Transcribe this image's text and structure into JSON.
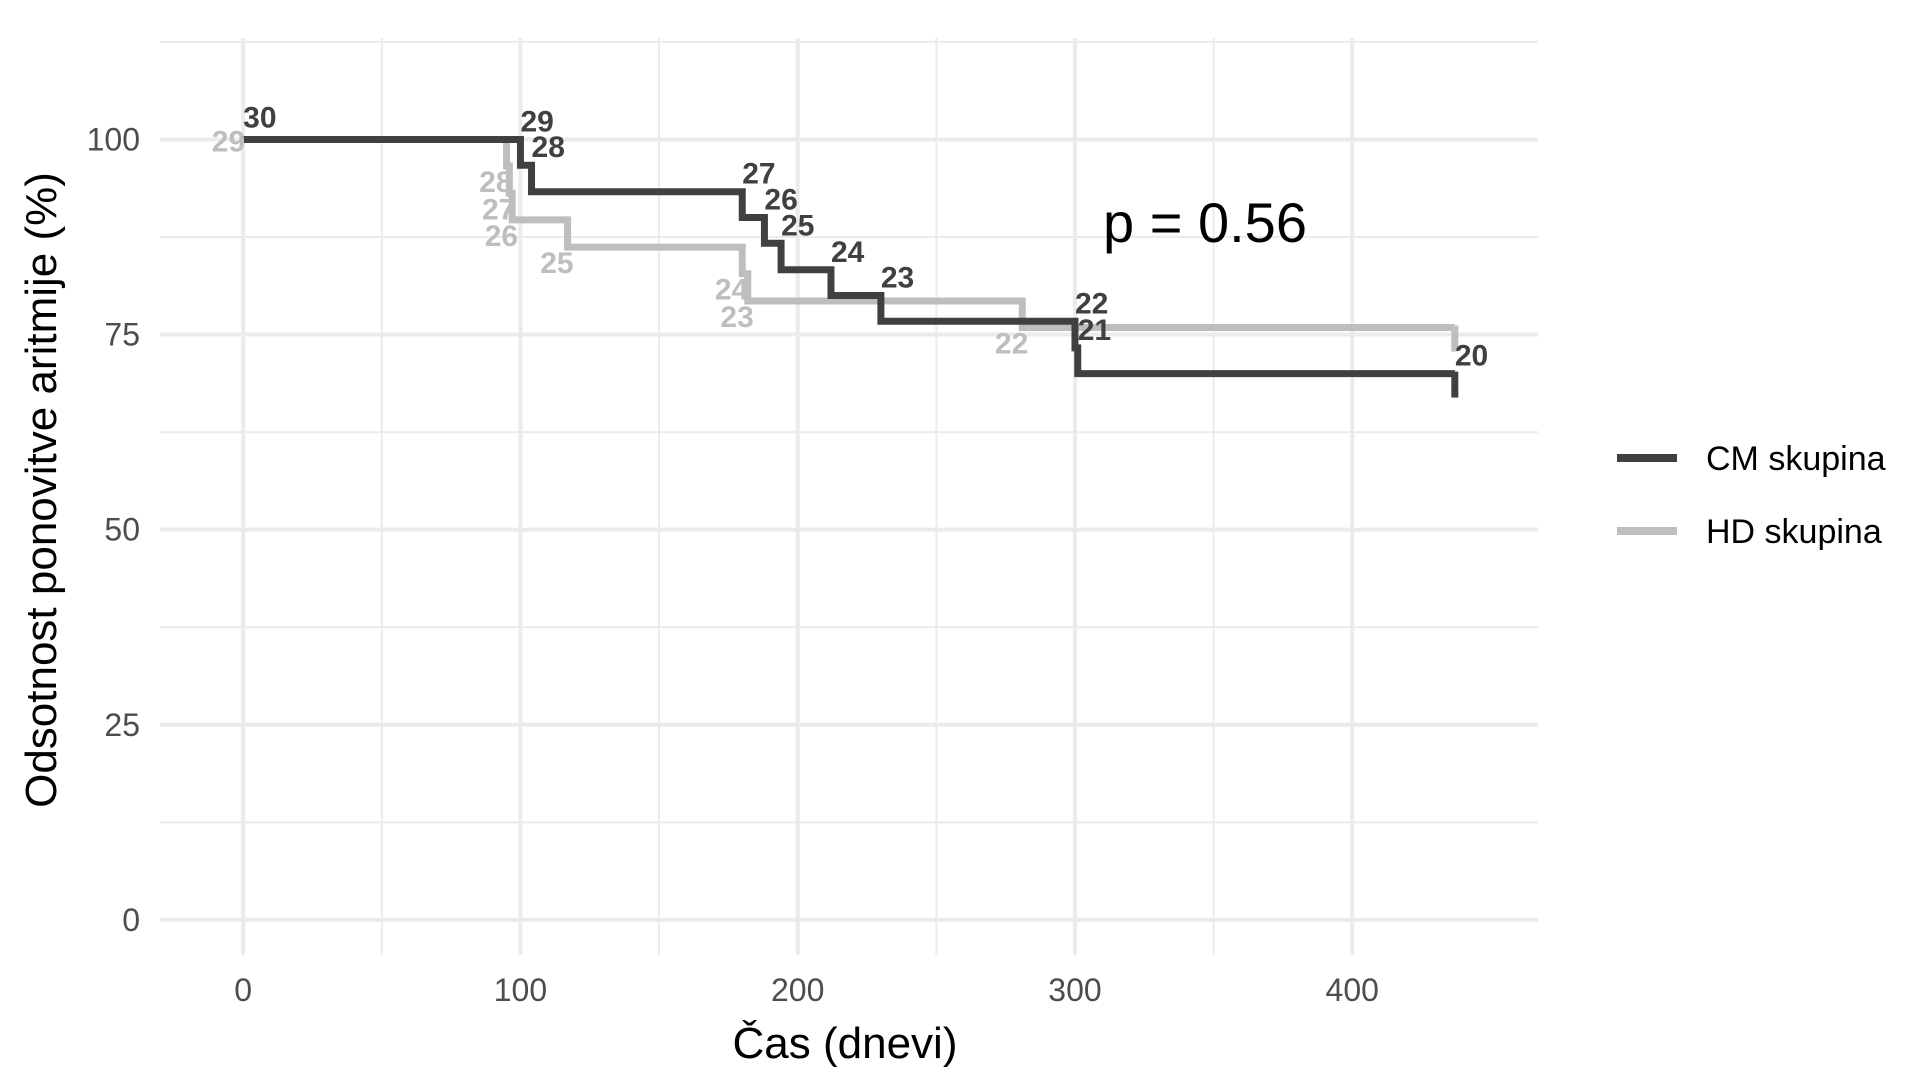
{
  "chart_data": {
    "type": "line",
    "title": "",
    "xlabel": "Čas (dnevi)",
    "ylabel": "Odsotnost ponovitve aritmije (%)",
    "xlim": [
      -30,
      467
    ],
    "ylim": [
      -4.5,
      113
    ],
    "x_ticks": [
      0,
      100,
      200,
      300,
      400
    ],
    "y_ticks": [
      0,
      25,
      50,
      75,
      100
    ],
    "grid": true,
    "legend_position": "right",
    "annotation": "p = 0.56",
    "series": [
      {
        "name": "CM skupina",
        "color": "#404040",
        "steps": [
          [
            0,
            100
          ],
          [
            100,
            96.7
          ],
          [
            104,
            93.3
          ],
          [
            180,
            90.0
          ],
          [
            188,
            86.7
          ],
          [
            194,
            83.3
          ],
          [
            212,
            80.0
          ],
          [
            230,
            76.7
          ],
          [
            300,
            73.3
          ],
          [
            301,
            70.0
          ],
          [
            437,
            70.0
          ]
        ],
        "risk_labels": [
          {
            "x": 0,
            "y": 100,
            "text": "30"
          },
          {
            "x": 100,
            "y": 100,
            "text": "29"
          },
          {
            "x": 104,
            "y": 96.7,
            "text": "28"
          },
          {
            "x": 180,
            "y": 93.3,
            "text": "27"
          },
          {
            "x": 188,
            "y": 90.0,
            "text": "26"
          },
          {
            "x": 194,
            "y": 86.7,
            "text": "25"
          },
          {
            "x": 212,
            "y": 83.3,
            "text": "24"
          },
          {
            "x": 230,
            "y": 80.0,
            "text": "23"
          },
          {
            "x": 300,
            "y": 76.7,
            "text": "22"
          },
          {
            "x": 301,
            "y": 73.3,
            "text": "21"
          },
          {
            "x": 437,
            "y": 70.0,
            "text": "20"
          }
        ]
      },
      {
        "name": "HD skupina",
        "color": "#bebebe",
        "steps": [
          [
            0,
            100
          ],
          [
            95,
            96.6
          ],
          [
            96,
            93.1
          ],
          [
            97,
            89.7
          ],
          [
            117,
            86.2
          ],
          [
            180,
            82.8
          ],
          [
            182,
            79.3
          ],
          [
            281,
            75.9
          ],
          [
            437,
            75.9
          ]
        ],
        "risk_labels": [
          {
            "x": 0,
            "y": 100,
            "text": "29"
          },
          {
            "x": 95,
            "y": 96.6,
            "text": "28"
          },
          {
            "x": 96,
            "y": 93.1,
            "text": "27"
          },
          {
            "x": 97,
            "y": 89.7,
            "text": "26"
          },
          {
            "x": 117,
            "y": 86.2,
            "text": "25"
          },
          {
            "x": 180,
            "y": 82.8,
            "text": "24"
          },
          {
            "x": 182,
            "y": 79.3,
            "text": "23"
          },
          {
            "x": 281,
            "y": 75.9,
            "text": "22"
          }
        ]
      }
    ]
  }
}
